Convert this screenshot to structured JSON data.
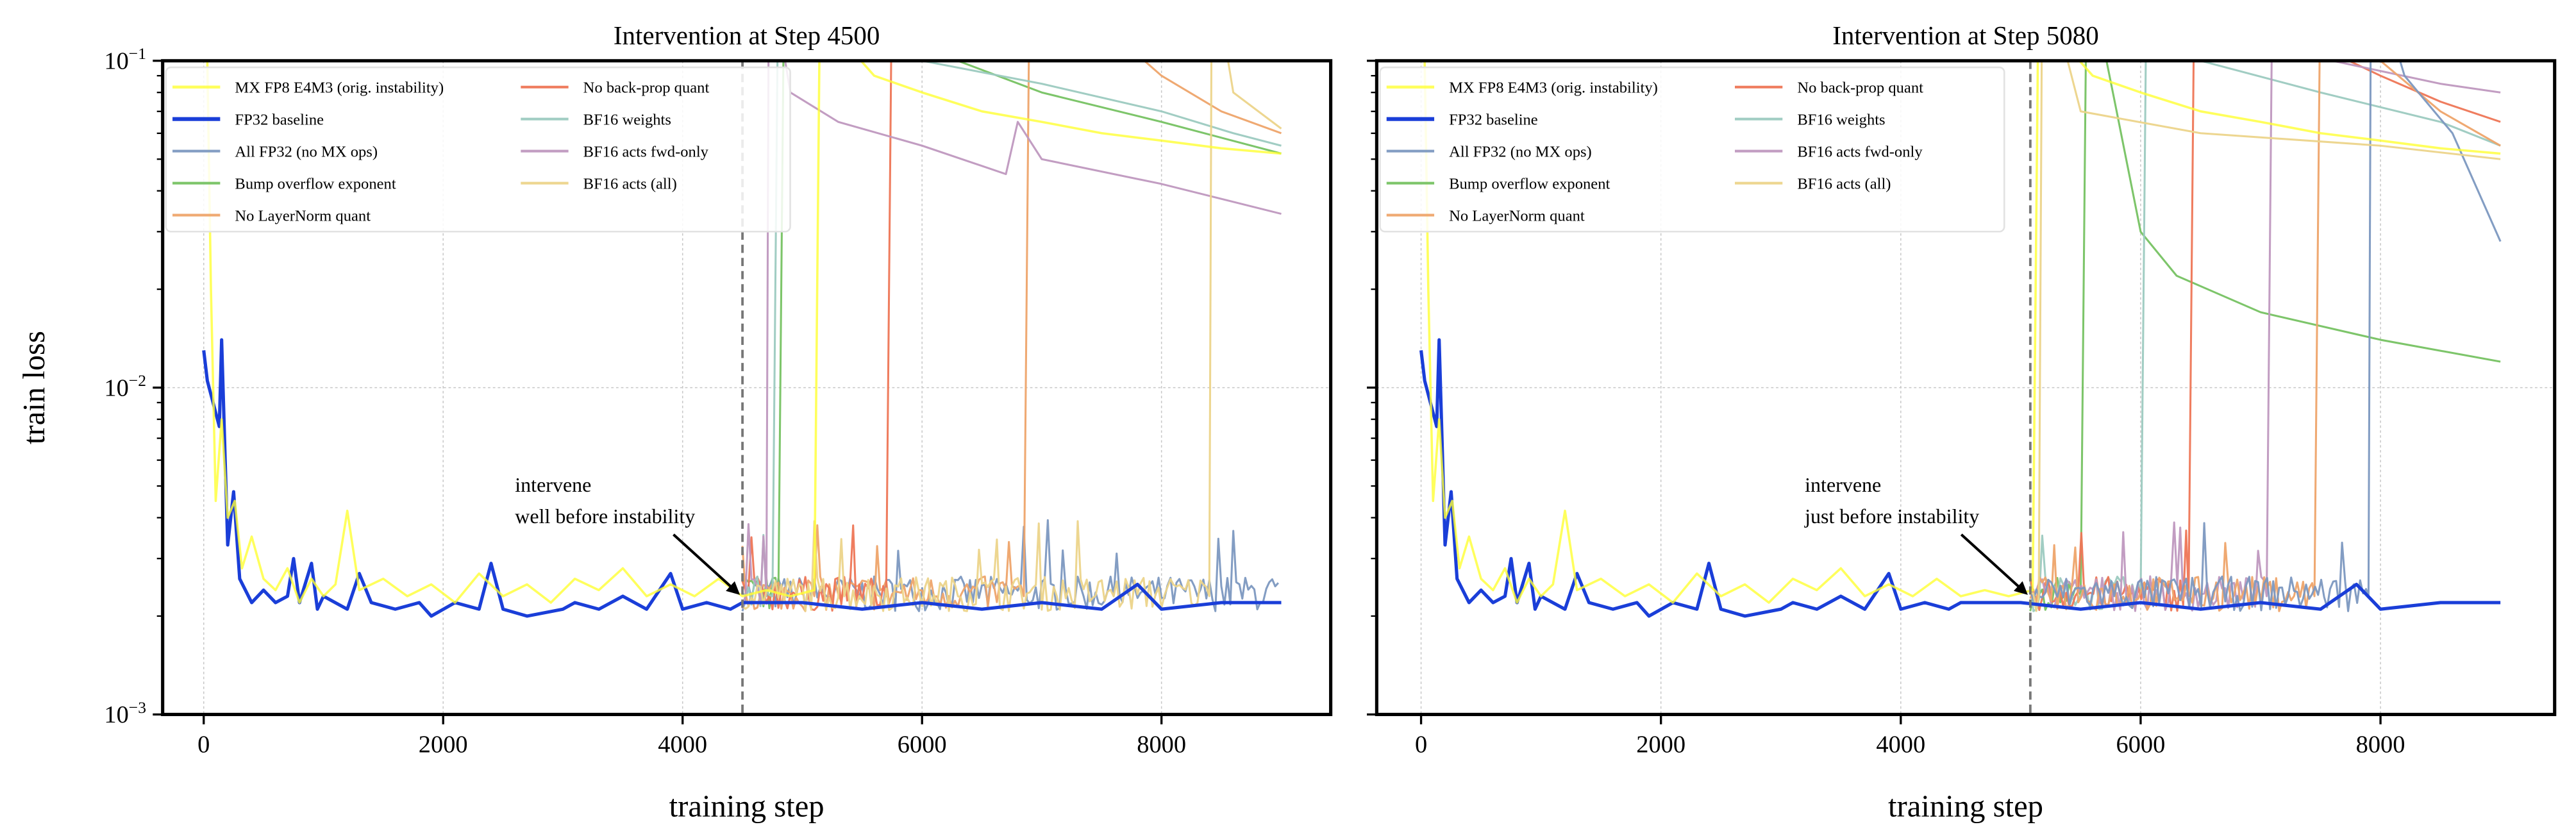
{
  "chart_data": [
    {
      "type": "line",
      "title": "Intervention at Step 4500",
      "xlabel": "training step",
      "ylabel": "train loss",
      "yscale": "log",
      "ylim": [
        0.001,
        0.1
      ],
      "xlim": [
        -450,
        9450
      ],
      "xticks": [
        0,
        2000,
        4000,
        6000,
        8000
      ],
      "yticks": [
        {
          "value": 0.1,
          "base": "10",
          "exp": "−1"
        },
        {
          "value": 0.01,
          "base": "10",
          "exp": "−2"
        },
        {
          "value": 0.001,
          "base": "10",
          "exp": "−3"
        }
      ],
      "show_ytick_labels": true,
      "grid": true,
      "intervention_step": 4500,
      "annotation": {
        "line1": "intervene",
        "line2": "well before instability",
        "target": [
          4500,
          0.0022
        ],
        "text_at": [
          2600,
          0.0048
        ]
      },
      "legend_position": "upper-left"
    },
    {
      "type": "line",
      "title": "Intervention at Step 5080",
      "xlabel": "training step",
      "ylabel": "",
      "yscale": "log",
      "ylim": [
        0.001,
        0.1
      ],
      "xlim": [
        -450,
        9450
      ],
      "xticks": [
        0,
        2000,
        4000,
        6000,
        8000
      ],
      "yticks": [
        {
          "value": 0.1
        },
        {
          "value": 0.01
        },
        {
          "value": 0.001
        }
      ],
      "show_ytick_labels": false,
      "grid": true,
      "intervention_step": 5080,
      "annotation": {
        "line1": "intervene",
        "line2": "just before instability",
        "target": [
          5080,
          0.0022
        ],
        "text_at": [
          3200,
          0.0048
        ]
      },
      "legend_position": "upper-left"
    }
  ],
  "legend": [
    {
      "key": "mx",
      "label": "MX FP8 E4M3 (orig. instability)",
      "color": "#ffff33",
      "width": 1.4,
      "opacity": 0.8
    },
    {
      "key": "fp32",
      "label": "FP32 baseline",
      "color": "#1a3ed8",
      "width": 2.0,
      "opacity": 1
    },
    {
      "key": "allfp32",
      "label": "All FP32 (no MX ops)",
      "color": "#7c98c0",
      "width": 1.2,
      "opacity": 0.95
    },
    {
      "key": "bump",
      "label": "Bump overflow exponent",
      "color": "#76c262",
      "width": 1.2,
      "opacity": 0.95
    },
    {
      "key": "ln",
      "label": "No LayerNorm quant",
      "color": "#eea46a",
      "width": 1.2,
      "opacity": 0.95
    },
    {
      "key": "bp",
      "label": "No back-prop quant",
      "color": "#ee7656",
      "width": 1.2,
      "opacity": 0.95
    },
    {
      "key": "bfw",
      "label": "BF16 weights",
      "color": "#9ccac0",
      "width": 1.2,
      "opacity": 0.95
    },
    {
      "key": "bff",
      "label": "BF16 acts fwd-only",
      "color": "#bf98bf",
      "width": 1.2,
      "opacity": 0.95
    },
    {
      "key": "bfa",
      "label": "BF16 acts (all)",
      "color": "#ecd48a",
      "width": 1.2,
      "opacity": 0.95
    }
  ],
  "shared_series": {
    "mx": [
      [
        0,
        0.3
      ],
      [
        30,
        0.1
      ],
      [
        60,
        0.02
      ],
      [
        100,
        0.0045
      ],
      [
        150,
        0.008
      ],
      [
        200,
        0.004
      ],
      [
        260,
        0.0045
      ],
      [
        320,
        0.0028
      ],
      [
        400,
        0.0035
      ],
      [
        500,
        0.0026
      ],
      [
        600,
        0.0024
      ],
      [
        700,
        0.0028
      ],
      [
        800,
        0.0022
      ],
      [
        900,
        0.0026
      ],
      [
        1000,
        0.0023
      ],
      [
        1100,
        0.0025
      ],
      [
        1200,
        0.0042
      ],
      [
        1300,
        0.0024
      ],
      [
        1500,
        0.0026
      ],
      [
        1700,
        0.0023
      ],
      [
        1900,
        0.0025
      ],
      [
        2100,
        0.0022
      ],
      [
        2300,
        0.0027
      ],
      [
        2500,
        0.0023
      ],
      [
        2700,
        0.0025
      ],
      [
        2900,
        0.0022
      ],
      [
        3100,
        0.0026
      ],
      [
        3300,
        0.0024
      ],
      [
        3500,
        0.0028
      ],
      [
        3700,
        0.0023
      ],
      [
        3900,
        0.0025
      ],
      [
        4100,
        0.0023
      ],
      [
        4300,
        0.0026
      ],
      [
        4500,
        0.0023
      ],
      [
        4700,
        0.0024
      ],
      [
        4900,
        0.0023
      ],
      [
        5100,
        0.0024
      ],
      [
        5150,
        0.2
      ],
      [
        5300,
        0.12
      ],
      [
        5600,
        0.09
      ],
      [
        6000,
        0.08
      ],
      [
        6500,
        0.07
      ],
      [
        7000,
        0.065
      ],
      [
        7500,
        0.06
      ],
      [
        8000,
        0.057
      ],
      [
        8500,
        0.054
      ],
      [
        9000,
        0.052
      ]
    ],
    "fp32": [
      [
        0,
        0.013
      ],
      [
        30,
        0.0105
      ],
      [
        130,
        0.0076
      ],
      [
        150,
        0.014
      ],
      [
        200,
        0.0033
      ],
      [
        250,
        0.0048
      ],
      [
        300,
        0.0026
      ],
      [
        400,
        0.0022
      ],
      [
        500,
        0.0024
      ],
      [
        600,
        0.0022
      ],
      [
        700,
        0.0023
      ],
      [
        750,
        0.003
      ],
      [
        800,
        0.0022
      ],
      [
        900,
        0.0029
      ],
      [
        950,
        0.0021
      ],
      [
        1000,
        0.0023
      ],
      [
        1200,
        0.0021
      ],
      [
        1300,
        0.0027
      ],
      [
        1400,
        0.0022
      ],
      [
        1600,
        0.0021
      ],
      [
        1800,
        0.0022
      ],
      [
        1900,
        0.002
      ],
      [
        2100,
        0.0022
      ],
      [
        2300,
        0.0021
      ],
      [
        2400,
        0.0029
      ],
      [
        2500,
        0.0021
      ],
      [
        2700,
        0.002
      ],
      [
        3000,
        0.0021
      ],
      [
        3100,
        0.0022
      ],
      [
        3300,
        0.0021
      ],
      [
        3500,
        0.0023
      ],
      [
        3700,
        0.0021
      ],
      [
        3900,
        0.0027
      ],
      [
        4000,
        0.0021
      ],
      [
        4200,
        0.0022
      ],
      [
        4400,
        0.0021
      ],
      [
        4500,
        0.0022
      ],
      [
        5000,
        0.0022
      ],
      [
        5500,
        0.0021
      ],
      [
        6000,
        0.0022
      ],
      [
        6500,
        0.0021
      ],
      [
        7000,
        0.0022
      ],
      [
        7500,
        0.0021
      ],
      [
        7800,
        0.0025
      ],
      [
        8000,
        0.0021
      ],
      [
        8500,
        0.0022
      ],
      [
        9000,
        0.0022
      ]
    ]
  },
  "interventions": [
    {
      "plateau_loss": 0.0023,
      "end_step": 9000,
      "series": [
        {
          "key": "allfp32",
          "spike_step": null,
          "decay": []
        },
        {
          "key": "bump",
          "spike_step": 4800,
          "decay": [
            [
              4850,
              0.2
            ],
            [
              5000,
              0.15
            ],
            [
              6000,
              0.11
            ],
            [
              7000,
              0.08
            ],
            [
              8000,
              0.065
            ],
            [
              9000,
              0.052
            ]
          ]
        },
        {
          "key": "ln",
          "spike_step": 6850,
          "decay": [
            [
              6900,
              0.2
            ],
            [
              7500,
              0.13
            ],
            [
              8000,
              0.09
            ],
            [
              8500,
              0.07
            ],
            [
              9000,
              0.06
            ]
          ]
        },
        {
          "key": "bp",
          "spike_step": 5700,
          "decay": [
            [
              5750,
              0.2
            ],
            [
              6500,
              0.15
            ],
            [
              7500,
              0.12
            ],
            [
              9000,
              0.1
            ]
          ]
        },
        {
          "key": "bfw",
          "spike_step": 4750,
          "decay": [
            [
              4800,
              0.2
            ],
            [
              5200,
              0.13
            ],
            [
              6000,
              0.1
            ],
            [
              7000,
              0.085
            ],
            [
              8000,
              0.07
            ],
            [
              8600,
              0.06
            ],
            [
              9000,
              0.055
            ]
          ]
        },
        {
          "key": "bff",
          "spike_step": 4700,
          "decay": [
            [
              4720,
              0.2
            ],
            [
              4900,
              0.08
            ],
            [
              5300,
              0.065
            ],
            [
              6000,
              0.055
            ],
            [
              6700,
              0.045
            ],
            [
              6800,
              0.065
            ],
            [
              7000,
              0.05
            ],
            [
              8000,
              0.042
            ],
            [
              9000,
              0.034
            ]
          ]
        },
        {
          "key": "bfa",
          "spike_step": 8400,
          "decay": [
            [
              8420,
              0.2
            ],
            [
              8600,
              0.08
            ],
            [
              9000,
              0.062
            ]
          ]
        }
      ]
    },
    {
      "plateau_loss": 0.0023,
      "end_step": 9000,
      "series": [
        {
          "key": "bump",
          "spike_step": 5500,
          "decay": [
            [
              5550,
              0.2
            ],
            [
              5800,
              0.07
            ],
            [
              6000,
              0.03
            ],
            [
              6300,
              0.022
            ],
            [
              7000,
              0.017
            ],
            [
              8000,
              0.014
            ],
            [
              9000,
              0.012
            ]
          ]
        },
        {
          "key": "bfw",
          "spike_step": 6000,
          "decay": [
            [
              6050,
              0.2
            ],
            [
              6500,
              0.1
            ],
            [
              7500,
              0.08
            ],
            [
              8500,
              0.065
            ],
            [
              9000,
              0.055
            ]
          ]
        },
        {
          "key": "bp",
          "spike_step": 6400,
          "decay": [
            [
              6450,
              0.2
            ],
            [
              7500,
              0.11
            ],
            [
              8000,
              0.09
            ],
            [
              8500,
              0.075
            ],
            [
              9000,
              0.065
            ]
          ]
        },
        {
          "key": "bff",
          "spike_step": 7050,
          "decay": [
            [
              7100,
              0.2
            ],
            [
              7600,
              0.1
            ],
            [
              8500,
              0.085
            ],
            [
              9000,
              0.08
            ]
          ]
        },
        {
          "key": "ln",
          "spike_step": 7450,
          "decay": [
            [
              7500,
              0.2
            ],
            [
              8000,
              0.1
            ],
            [
              8500,
              0.07
            ],
            [
              9000,
              0.055
            ]
          ]
        },
        {
          "key": "allfp32",
          "spike_step": 7900,
          "decay": [
            [
              7920,
              0.2
            ],
            [
              8200,
              0.09
            ],
            [
              8600,
              0.06
            ],
            [
              9000,
              0.028
            ]
          ]
        },
        {
          "key": "bfa",
          "spike_step": 5150,
          "decay": [
            [
              5180,
              0.2
            ],
            [
              5500,
              0.07
            ],
            [
              6500,
              0.06
            ],
            [
              8000,
              0.055
            ],
            [
              9000,
              0.05
            ]
          ]
        }
      ]
    }
  ]
}
